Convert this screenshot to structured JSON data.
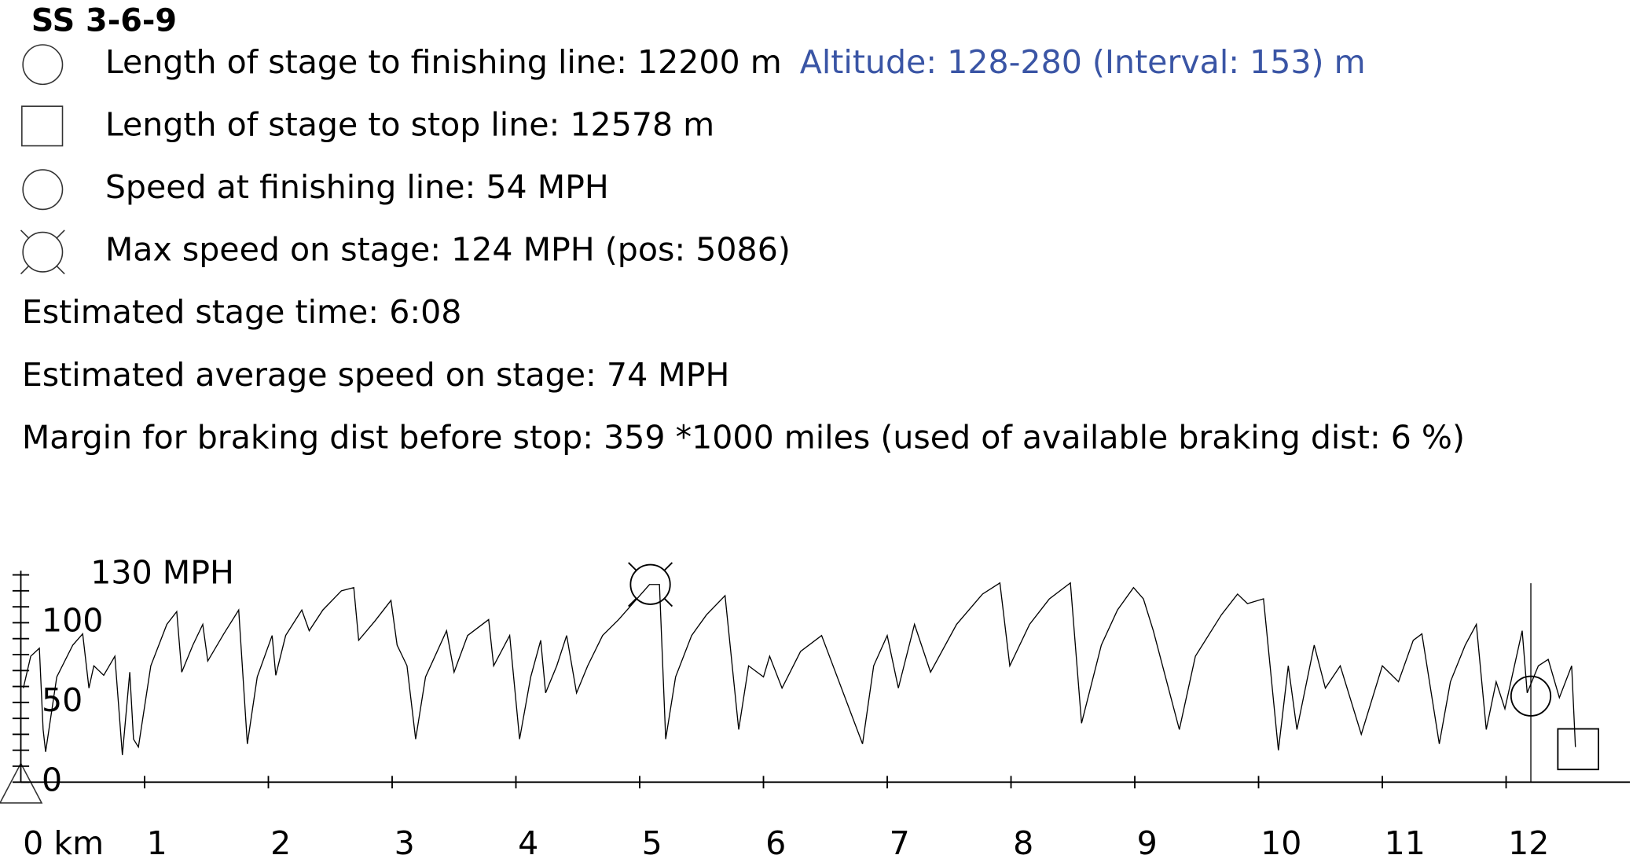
{
  "header": {
    "title": "SS 3-6-9",
    "lines": [
      "Length of stage to finishing line: 12200 m",
      "Length of stage to stop line: 12578 m",
      "Speed at finishing line: 54 MPH",
      "Max speed on stage: 124 MPH (pos: 5086)",
      "Estimated stage time: 6:08",
      "Estimated average speed on stage: 74 MPH",
      "Margin for braking dist before stop: 359 *1000 miles (used of available braking dist: 6 %)"
    ],
    "altitude": "Altitude: 128-280 (Interval: 153) m"
  },
  "chart_data": {
    "type": "line",
    "color": "#000000",
    "x": [
      0.02,
      0.08,
      0.15,
      0.18,
      0.2,
      0.29,
      0.42,
      0.5,
      0.55,
      0.59,
      0.67,
      0.76,
      0.82,
      0.88,
      0.91,
      0.95,
      1.05,
      1.18,
      1.26,
      1.3,
      1.39,
      1.47,
      1.51,
      1.64,
      1.76,
      1.83,
      1.91,
      2.03,
      2.06,
      2.14,
      2.27,
      2.33,
      2.44,
      2.59,
      2.69,
      2.73,
      2.86,
      2.99,
      3.04,
      3.12,
      3.19,
      3.27,
      3.44,
      3.5,
      3.61,
      3.78,
      3.82,
      3.95,
      4.03,
      4.12,
      4.2,
      4.24,
      4.33,
      4.41,
      4.49,
      4.58,
      4.7,
      4.83,
      5.08,
      5.16,
      5.21,
      5.29,
      5.42,
      5.54,
      5.69,
      5.8,
      5.88,
      6.0,
      6.05,
      6.15,
      6.3,
      6.47,
      6.8,
      6.89,
      7.0,
      7.09,
      7.22,
      7.35,
      7.56,
      7.77,
      7.91,
      7.99,
      8.15,
      8.31,
      8.48,
      8.57,
      8.73,
      8.86,
      8.99,
      9.07,
      9.15,
      9.36,
      9.49,
      9.7,
      9.83,
      9.91,
      10.04,
      10.16,
      10.24,
      10.31,
      10.45,
      10.54,
      10.66,
      10.83,
      11.0,
      11.13,
      11.25,
      11.32,
      11.46,
      11.55,
      11.67,
      11.76,
      11.84,
      11.92,
      11.99,
      12.13,
      12.17,
      12.26,
      12.34,
      12.43,
      12.53,
      12.56
    ],
    "values": [
      59,
      79,
      84,
      33,
      19,
      66,
      86,
      93,
      59,
      73,
      67,
      79,
      17,
      69,
      27,
      22,
      73,
      99,
      107,
      69,
      86,
      99,
      76,
      93,
      108,
      24,
      66,
      92,
      67,
      92,
      108,
      95,
      108,
      120,
      122,
      89,
      101,
      114,
      86,
      73,
      27,
      66,
      95,
      69,
      92,
      102,
      73,
      92,
      27,
      66,
      89,
      56,
      73,
      92,
      56,
      73,
      92,
      102,
      124,
      124,
      27,
      66,
      92,
      105,
      117,
      33,
      73,
      66,
      79,
      59,
      82,
      92,
      24,
      73,
      92,
      59,
      99,
      69,
      99,
      118,
      125,
      73,
      99,
      115,
      125,
      37,
      86,
      108,
      122,
      115,
      95,
      33,
      79,
      105,
      118,
      112,
      115,
      20,
      73,
      33,
      86,
      59,
      73,
      30,
      73,
      63,
      89,
      93,
      24,
      63,
      86,
      99,
      33,
      63,
      46,
      95,
      56,
      73,
      77,
      53,
      73,
      22
    ],
    "xlim": [
      0,
      13
    ],
    "ylim": [
      0,
      130
    ],
    "xticks": [
      {
        "value": 0,
        "label": "0 km"
      },
      1,
      2,
      3,
      4,
      5,
      6,
      7,
      8,
      9,
      10,
      11,
      12
    ],
    "yticks": [
      0,
      50,
      100,
      {
        "value": 130,
        "label": "130 MPH"
      }
    ],
    "yminorticks": [
      10,
      20,
      30,
      40,
      60,
      70,
      80,
      90,
      110,
      120
    ],
    "finish": {
      "x": 12.2,
      "y": 54
    },
    "stop": {
      "x": 12.578,
      "y": 21
    },
    "max": {
      "x": 5.086,
      "y": 124
    }
  }
}
